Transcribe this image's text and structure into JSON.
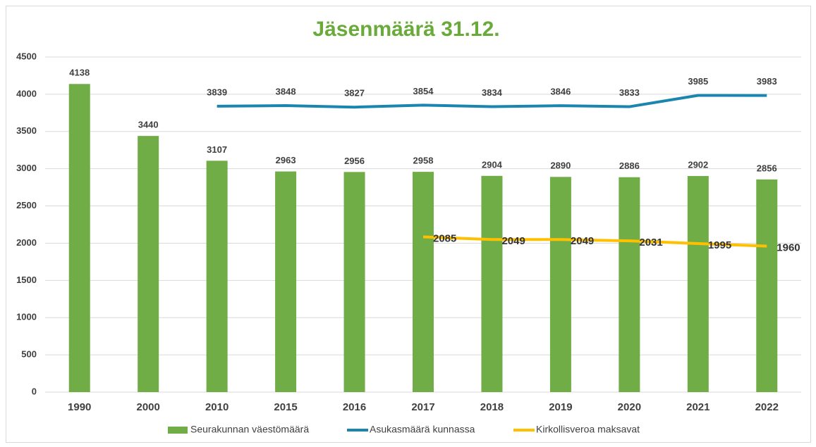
{
  "chart_data": {
    "type": "bar-line",
    "title": "Jäsenmäärä 31.12.",
    "categories": [
      "1990",
      "2000",
      "2010",
      "2015",
      "2016",
      "2017",
      "2018",
      "2019",
      "2020",
      "2021",
      "2022"
    ],
    "series": [
      {
        "name": "Seurakunnan väestömäärä",
        "type": "bar",
        "color": "#70ad47",
        "values": [
          4138,
          3440,
          3107,
          2963,
          2956,
          2958,
          2904,
          2890,
          2886,
          2902,
          2856
        ]
      },
      {
        "name": "Asukasmäärä kunnassa",
        "type": "line",
        "color": "#1a86b0",
        "values": [
          null,
          null,
          3839,
          3848,
          3827,
          3854,
          3834,
          3846,
          3833,
          3985,
          3983
        ]
      },
      {
        "name": "Kirkollisveroa maksavat",
        "type": "line",
        "color": "#ffc000",
        "values": [
          null,
          null,
          null,
          null,
          null,
          2085,
          2049,
          2049,
          2031,
          1995,
          1960
        ]
      }
    ],
    "ylim": [
      0,
      4500
    ],
    "yticks": [
      0,
      500,
      1000,
      1500,
      2000,
      2500,
      3000,
      3500,
      4000,
      4500
    ],
    "grid": true,
    "legend": "bottom"
  }
}
